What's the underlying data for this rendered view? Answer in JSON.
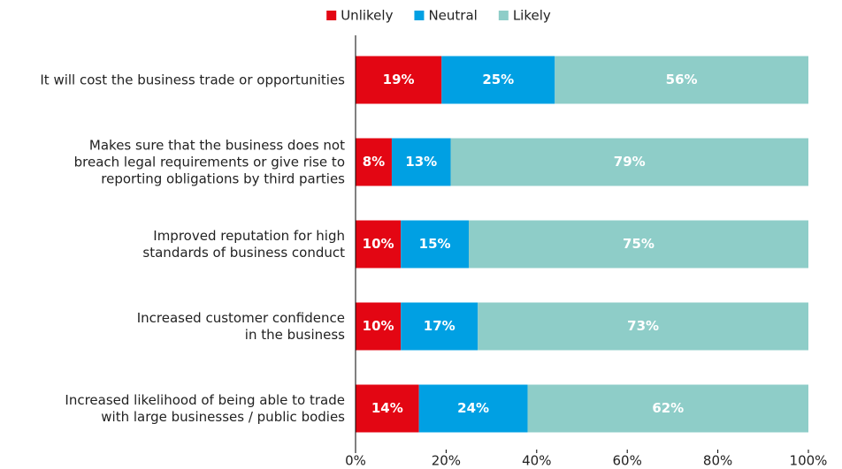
{
  "chart_data": {
    "type": "stacked_barh",
    "categories": [
      "It will cost the business trade or opportunities",
      "Makes sure that the business does not\nbreach legal requirements or give rise to\nreporting obligations by third parties",
      "Improved reputation for high\nstandards of business conduct",
      "Increased customer confidence\nin the business",
      "Increased likelihood of being able to trade\nwith large businesses / public bodies"
    ],
    "series": [
      {
        "name": "Unlikely",
        "color": "#e30613",
        "values": [
          19,
          8,
          10,
          10,
          14
        ],
        "value_labels": [
          "19%",
          "8%",
          "10%",
          "10%",
          "14%"
        ]
      },
      {
        "name": "Neutral",
        "color": "#00a0e3",
        "values": [
          25,
          13,
          15,
          17,
          24
        ],
        "value_labels": [
          "25%",
          "13%",
          "15%",
          "17%",
          "24%"
        ]
      },
      {
        "name": "Likely",
        "color": "#8ecdc8",
        "values": [
          56,
          79,
          75,
          73,
          62
        ],
        "value_labels": [
          "56%",
          "79%",
          "75%",
          "73%",
          "62%"
        ]
      }
    ],
    "xlim": [
      0,
      100
    ],
    "xticks": [
      {
        "value": 0,
        "label": "0%"
      },
      {
        "value": 20,
        "label": "20%"
      },
      {
        "value": 40,
        "label": "40%"
      },
      {
        "value": 60,
        "label": "60%"
      },
      {
        "value": 80,
        "label": "80%"
      },
      {
        "value": 100,
        "label": "100%"
      }
    ],
    "legend": "top"
  }
}
